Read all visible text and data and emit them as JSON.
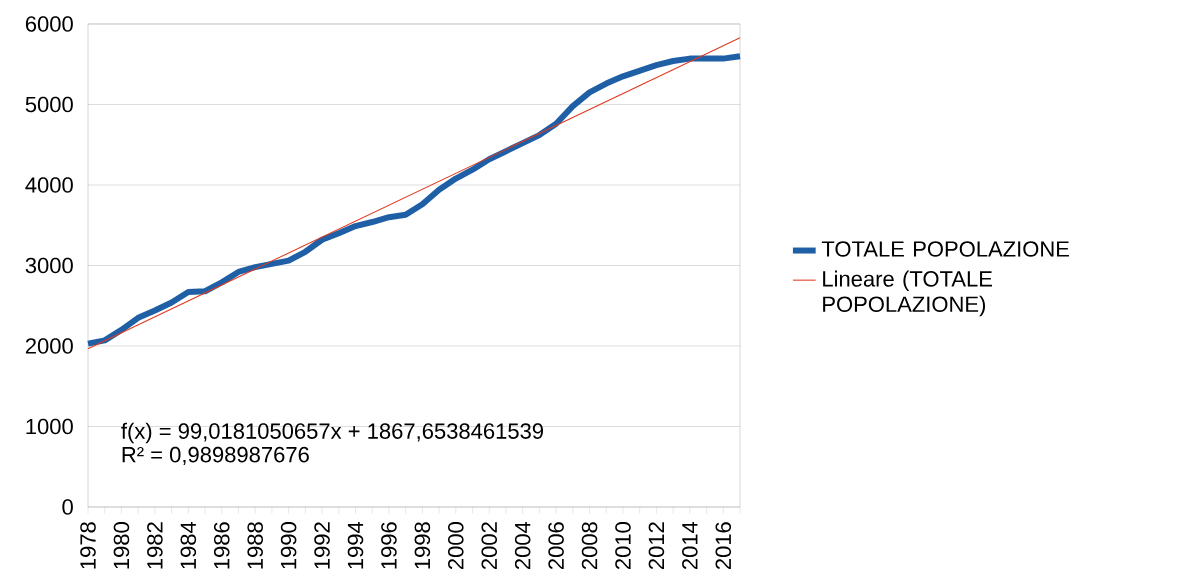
{
  "chart_data": {
    "type": "line",
    "x": [
      1978,
      1979,
      1980,
      1981,
      1982,
      1983,
      1984,
      1985,
      1986,
      1987,
      1988,
      1989,
      1990,
      1991,
      1992,
      1993,
      1994,
      1995,
      1996,
      1997,
      1998,
      1999,
      2000,
      2001,
      2002,
      2003,
      2004,
      2005,
      2006,
      2007,
      2008,
      2009,
      2010,
      2011,
      2012,
      2013,
      2014,
      2015,
      2016,
      2017
    ],
    "series": [
      {
        "name": "TOTALE POPOLAZIONE",
        "color": "#1f5fa6",
        "values": [
          2030,
          2070,
          2200,
          2350,
          2440,
          2540,
          2670,
          2680,
          2790,
          2920,
          2980,
          3020,
          3060,
          3170,
          3320,
          3400,
          3490,
          3540,
          3600,
          3630,
          3760,
          3940,
          4080,
          4190,
          4320,
          4420,
          4520,
          4620,
          4760,
          4980,
          5150,
          5260,
          5350,
          5420,
          5490,
          5540,
          5570,
          5570,
          5570,
          5600
        ]
      },
      {
        "name": "Lineare (TOTALE POPOLAZIONE)",
        "type": "line",
        "color": "#e03a1e",
        "x": [
          1978,
          2017
        ],
        "values": [
          1967,
          5828
        ]
      }
    ],
    "xlim": [
      1978,
      2017
    ],
    "xticks": [
      1978,
      {
        "value": 1979,
        "label": null
      },
      1980,
      {
        "value": 1981,
        "label": null
      },
      1982,
      {
        "value": 1983,
        "label": null
      },
      1984,
      {
        "value": 1985,
        "label": null
      },
      1986,
      {
        "value": 1987,
        "label": null
      },
      1988,
      {
        "value": 1989,
        "label": null
      },
      1990,
      {
        "value": 1991,
        "label": null
      },
      1992,
      {
        "value": 1993,
        "label": null
      },
      1994,
      {
        "value": 1995,
        "label": null
      },
      1996,
      {
        "value": 1997,
        "label": null
      },
      1998,
      {
        "value": 1999,
        "label": null
      },
      2000,
      {
        "value": 2001,
        "label": null
      },
      2002,
      {
        "value": 2003,
        "label": null
      },
      2004,
      {
        "value": 2005,
        "label": null
      },
      2006,
      {
        "value": 2007,
        "label": null
      },
      2008,
      {
        "value": 2009,
        "label": null
      },
      2010,
      {
        "value": 2011,
        "label": null
      },
      2012,
      {
        "value": 2013,
        "label": null
      },
      2014,
      {
        "value": 2015,
        "label": null
      },
      2016,
      {
        "value": 2017,
        "label": null
      }
    ],
    "ylim": [
      0,
      6000
    ],
    "yticks": [
      0,
      1000,
      2000,
      3000,
      4000,
      5000,
      6000
    ],
    "annotations": [
      "f(x) = 99,0181050657x + 1867,6538461539",
      "R² = 0,9898987676"
    ],
    "grid": "y",
    "legend": "right",
    "marker": "none",
    "line_style": "solid"
  }
}
